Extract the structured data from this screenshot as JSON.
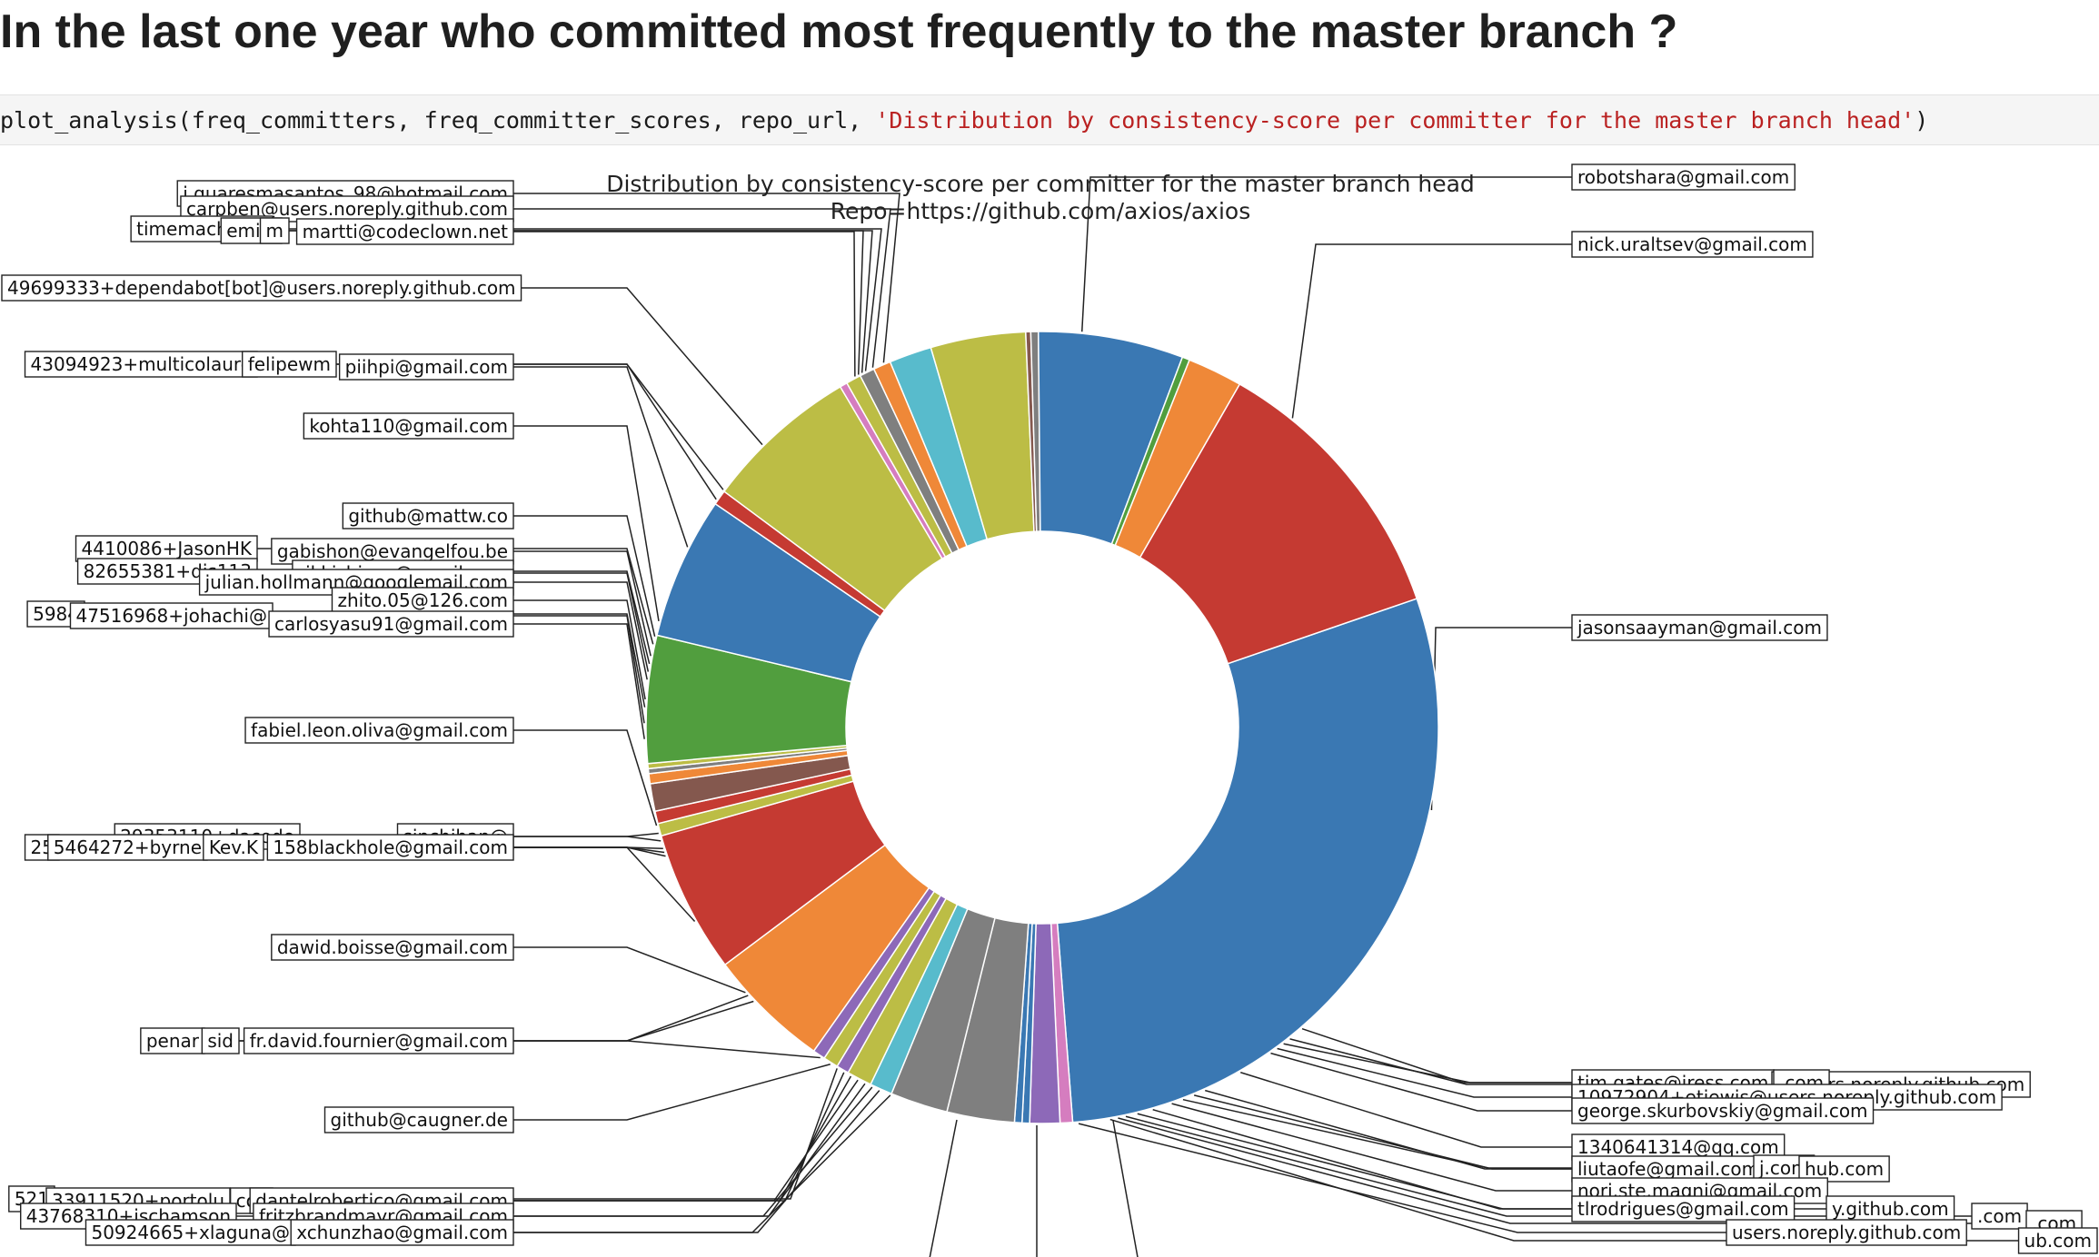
{
  "page": {
    "heading": "In the last one year who committed most frequently to the master branch ?"
  },
  "code": {
    "call": "plot_analysis(freq_committers, freq_committer_scores, repo_url, ",
    "string_arg": "'Distribution by consistency-score per committer for the master branch head'",
    "close": ")"
  },
  "chart_data": {
    "type": "pie",
    "donut": true,
    "title": "Distribution by consistency-score per committer for the master branch head",
    "subtitle": "Repo=https://github.com/axios/axios",
    "legend": "none",
    "palette": {
      "blue": "#3a78b3",
      "orange": "#ef8838",
      "green": "#519e3e",
      "red": "#c53a32",
      "purple": "#8d69b8",
      "brown": "#84584e",
      "pink": "#d57dbf",
      "gray": "#7f7f7f",
      "olive": "#bcbd45",
      "cyan": "#58bbcc"
    },
    "slices": [
      {
        "label": "nick.uraltsev@gmail.com",
        "value": 0.0,
        "color": "blue",
        "span": 1.0
      },
      {
        "label": "jasonsaayman@gmail.com",
        "value": 28.5,
        "color": "blue"
      },
      {
        "label": "",
        "value": 0.5,
        "color": "pink"
      },
      {
        "label": "tim.gates@iress.com",
        "value": 1.2,
        "color": "purple"
      },
      {
        "label": "",
        "value": 0.3,
        "color": "blue"
      },
      {
        "label": "",
        "value": 0.3,
        "color": "blue"
      },
      {
        "label": "",
        "value": 2.7,
        "color": "gray"
      },
      {
        "label": "1340641314@qq.com",
        "value": 2.3,
        "color": "gray"
      },
      {
        "label": "liutaofe@gmail.com",
        "value": 0.9,
        "color": "cyan"
      },
      {
        "label": "",
        "value": 1.0,
        "color": "olive"
      },
      {
        "label": "",
        "value": 0.5,
        "color": "purple"
      },
      {
        "label": "",
        "value": 0.6,
        "color": "olive"
      },
      {
        "label": "",
        "value": 0.5,
        "color": "purple"
      },
      {
        "label": "",
        "value": 4.9,
        "color": "orange"
      },
      {
        "label": "",
        "value": 5.7,
        "color": "red"
      },
      {
        "label": "",
        "value": 0.5,
        "color": "olive"
      },
      {
        "label": "",
        "value": 0.5,
        "color": "red"
      },
      {
        "label": "",
        "value": 1.1,
        "color": "brown"
      },
      {
        "label": "",
        "value": 0.4,
        "color": "orange"
      },
      {
        "label": "",
        "value": 0.2,
        "color": "gray"
      },
      {
        "label": "",
        "value": 0.2,
        "color": "olive"
      },
      {
        "label": "github@caugner.de",
        "value": 5.1,
        "color": "green"
      },
      {
        "label": "dawid.boisse@gmail.com",
        "value": 5.7,
        "color": "blue"
      },
      {
        "label": "158blackhole@gmail.com",
        "value": 0.6,
        "color": "red"
      },
      {
        "label": "fabiel.leon.oliva@gmail.com",
        "value": 6.2,
        "color": "olive"
      },
      {
        "label": "",
        "value": 0.3,
        "color": "pink"
      },
      {
        "label": "carlosyasu91@gmail.com",
        "value": 0.6,
        "color": "olive"
      },
      {
        "label": "",
        "value": 0.6,
        "color": "gray"
      },
      {
        "label": "",
        "value": 0.7,
        "color": "orange"
      },
      {
        "label": "github@mattw.co",
        "value": 1.7,
        "color": "cyan"
      },
      {
        "label": "kohta110@gmail.com",
        "value": 3.8,
        "color": "olive"
      },
      {
        "label": "",
        "value": 0.2,
        "color": "brown"
      },
      {
        "label": "piihpi@gmail.com",
        "value": 0.3,
        "color": "gray"
      },
      {
        "label": "49699333+dependabot[bot]@users.noreply.github.com",
        "value": 5.8,
        "color": "blue"
      },
      {
        "label": "martti@codeclown.net",
        "value": 0.3,
        "color": "green"
      },
      {
        "label": "",
        "value": 2.2,
        "color": "orange"
      },
      {
        "label": "robotshara@gmail.com",
        "value": 11.2,
        "color": "red"
      }
    ],
    "labels": [
      {
        "text": "robotshara@gmail.com",
        "side": "right"
      },
      {
        "text": "nick.uraltsev@gmail.com",
        "side": "right"
      },
      {
        "text": "jasonsaayman@gmail.com",
        "side": "right"
      },
      {
        "text": "tim.gates@iress.com",
        "side": "right"
      },
      {
        "text": "@users.noreply.github.com",
        "side": "right"
      },
      {
        "text": ".com",
        "side": "right"
      },
      {
        "text": "10972904+etjewis@users.noreply.github.com",
        "side": "right"
      },
      {
        "text": "george.skurbovskiy@gmail.com",
        "side": "right"
      },
      {
        "text": "1340641314@qq.com",
        "side": "right"
      },
      {
        "text": "liutaofe@gmail.com",
        "side": "right"
      },
      {
        "text": "j.com",
        "side": "right"
      },
      {
        "text": "hub.com",
        "side": "right"
      },
      {
        "text": "nori.ste.magni@gmail.com",
        "side": "right"
      },
      {
        "text": "tlrodrigues@gmail.com",
        "side": "right"
      },
      {
        "text": "y.github.com",
        "side": "right"
      },
      {
        "text": ".com",
        "side": "right"
      },
      {
        "text": ".com",
        "side": "right"
      },
      {
        "text": "ub.com",
        "side": "right"
      },
      {
        "text": "users.noreply.github.com",
        "side": "right"
      },
      {
        "text": "j.guaresmasantos_98@hotmail.com",
        "side": "left"
      },
      {
        "text": "carpben@users.noreply.github.com",
        "side": "left"
      },
      {
        "text": "timemachine3",
        "side": "left"
      },
      {
        "text": "emily",
        "side": "left"
      },
      {
        "text": "m",
        "side": "left"
      },
      {
        "text": "martti@codeclown.net",
        "side": "left"
      },
      {
        "text": "49699333+dependabot[bot]@users.noreply.github.com",
        "side": "left"
      },
      {
        "text": "43094923+multicolaure",
        "side": "left"
      },
      {
        "text": "felipewm",
        "side": "left"
      },
      {
        "text": "piihpi@gmail.com",
        "side": "left"
      },
      {
        "text": "kohta110@gmail.com",
        "side": "left"
      },
      {
        "text": "github@mattw.co",
        "side": "left"
      },
      {
        "text": "4410086+JasonHK",
        "side": "left"
      },
      {
        "text": "gabishon@evangelfou.be",
        "side": "left"
      },
      {
        "text": "82655381+dis113",
        "side": "left"
      },
      {
        "text": "rikkishison@gmail.com",
        "side": "left"
      },
      {
        "text": "julian.hollmann@googlemail.com",
        "side": "left"
      },
      {
        "text": "zhito.05@126.com",
        "side": "left"
      },
      {
        "text": "5984",
        "side": "left"
      },
      {
        "text": "47516968+johachi@",
        "side": "left"
      },
      {
        "text": "carlosyasu91@gmail.com",
        "side": "left"
      },
      {
        "text": "fabiel.leon.oliva@gmail.com",
        "side": "left"
      },
      {
        "text": "29353110+dacode",
        "side": "left"
      },
      {
        "text": "sinchihan@",
        "side": "left"
      },
      {
        "text": "25",
        "side": "left"
      },
      {
        "text": "5464272+byrne",
        "side": "left"
      },
      {
        "text": "Kev.K",
        "side": "left"
      },
      {
        "text": "158blackhole@gmail.com",
        "side": "left"
      },
      {
        "text": "dawid.boisse@gmail.com",
        "side": "left"
      },
      {
        "text": "penar",
        "side": "left"
      },
      {
        "text": "sid",
        "side": "left"
      },
      {
        "text": "fr.david.fournier@gmail.com",
        "side": "left"
      },
      {
        "text": "github@caugner.de",
        "side": "left"
      },
      {
        "text": "521",
        "side": "left"
      },
      {
        "text": "33911520+portolu",
        "side": "left"
      },
      {
        "text": "coli",
        "side": "left"
      },
      {
        "text": "dantelrobertico@gmail.com",
        "side": "left"
      },
      {
        "text": "43768310+jschamson",
        "side": "left"
      },
      {
        "text": "fritzbrandmayr@gmail.com",
        "side": "left"
      },
      {
        "text": "50924665+xlaguna@",
        "side": "left"
      },
      {
        "text": "xchunzhao@gmail.com",
        "side": "left"
      }
    ]
  }
}
